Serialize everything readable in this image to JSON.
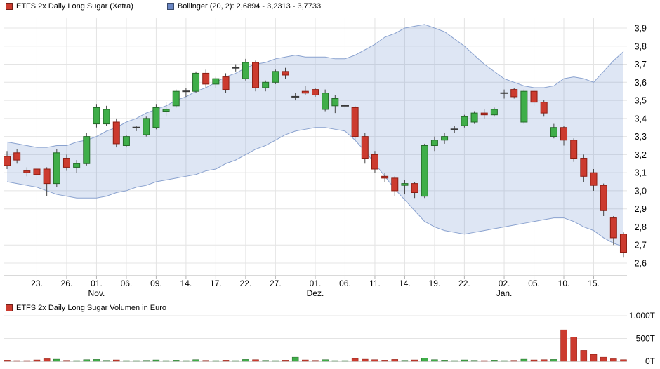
{
  "legend": {
    "price_series": {
      "label": "ETFS 2x Daily Long Sugar (Xetra)",
      "swatch": "red-square"
    },
    "bollinger": {
      "label": "Bollinger (20, 2): 2,6894 - 3,2313 - 3,7733",
      "swatch": "blue-square"
    },
    "volume_series": {
      "label": "ETFS 2x Daily Long Sugar Volumen in Euro",
      "swatch": "red-square"
    }
  },
  "colors": {
    "up": "#3fae49",
    "up_border": "#246b28",
    "down": "#cc3b2f",
    "down_border": "#8e1d12",
    "wick": "#444444",
    "doji": "#3a3a3a",
    "grid": "#e4e4e4",
    "axis": "#b3b3b3",
    "band_fill": "rgba(90,130,200,0.20)",
    "band_line": "#8aa2cf",
    "band_swatch": "#6b87c4",
    "text": "#000000"
  },
  "chart_data": [
    {
      "type": "candlestick",
      "title": "ETFS 2x Daily Long Sugar (Xetra)",
      "legend_entries": [
        "ETFS 2x Daily Long Sugar (Xetra)",
        "Bollinger (20, 2): 2,6894 - 3,2313 - 3,7733"
      ],
      "ylim": [
        2.6,
        3.9
      ],
      "grid": true,
      "y_ticks": [
        [
          "3,9",
          3.9
        ],
        [
          "3,8",
          3.8
        ],
        [
          "3,7",
          3.7
        ],
        [
          "3,6",
          3.6
        ],
        [
          "3,5",
          3.5
        ],
        [
          "3,4",
          3.4
        ],
        [
          "3,3",
          3.3
        ],
        [
          "3,2",
          3.2
        ],
        [
          "3,1",
          3.1
        ],
        [
          "3,0",
          3.0
        ],
        [
          "2,9",
          2.9
        ],
        [
          "2,8",
          2.8
        ],
        [
          "2,7",
          2.7
        ],
        [
          "2,6",
          2.6
        ]
      ],
      "x_ticks": [
        [
          3,
          "23."
        ],
        [
          6,
          "26."
        ],
        [
          9,
          "01."
        ],
        [
          12,
          "06."
        ],
        [
          15,
          "09."
        ],
        [
          18,
          "14."
        ],
        [
          21,
          "17."
        ],
        [
          24,
          "22."
        ],
        [
          27,
          "27."
        ],
        [
          31,
          "01."
        ],
        [
          34,
          "06."
        ],
        [
          37,
          "11."
        ],
        [
          40,
          "14."
        ],
        [
          43,
          "19."
        ],
        [
          46,
          "22."
        ],
        [
          50,
          "02."
        ],
        [
          53,
          "05."
        ],
        [
          56,
          "10."
        ],
        [
          59,
          "15."
        ]
      ],
      "month_ticks": [
        [
          9,
          "Nov."
        ],
        [
          31,
          "Dez."
        ],
        [
          50,
          "Jan."
        ]
      ],
      "candles_format": [
        "open",
        "high",
        "low",
        "close"
      ],
      "candles": [
        [
          3.19,
          3.22,
          3.12,
          3.14
        ],
        [
          3.21,
          3.23,
          3.15,
          3.17
        ],
        [
          3.11,
          3.13,
          3.08,
          3.1
        ],
        [
          3.12,
          3.13,
          3.06,
          3.09
        ],
        [
          3.12,
          3.13,
          2.97,
          3.04
        ],
        [
          3.04,
          3.23,
          3.02,
          3.21
        ],
        [
          3.18,
          3.2,
          3.11,
          3.13
        ],
        [
          3.13,
          3.17,
          3.1,
          3.15
        ],
        [
          3.15,
          3.32,
          3.14,
          3.3
        ],
        [
          3.37,
          3.48,
          3.35,
          3.46
        ],
        [
          3.37,
          3.47,
          3.36,
          3.45
        ],
        [
          3.38,
          3.4,
          3.24,
          3.26
        ],
        [
          3.25,
          3.31,
          3.24,
          3.3
        ],
        [
          3.35,
          3.36,
          3.33,
          3.35
        ],
        [
          3.31,
          3.41,
          3.3,
          3.4
        ],
        [
          3.35,
          3.48,
          3.34,
          3.46
        ],
        [
          3.44,
          3.49,
          3.41,
          3.45
        ],
        [
          3.47,
          3.56,
          3.46,
          3.55
        ],
        [
          3.55,
          3.57,
          3.52,
          3.55
        ],
        [
          3.55,
          3.66,
          3.54,
          3.65
        ],
        [
          3.65,
          3.67,
          3.57,
          3.59
        ],
        [
          3.59,
          3.63,
          3.57,
          3.62
        ],
        [
          3.63,
          3.65,
          3.54,
          3.56
        ],
        [
          3.68,
          3.7,
          3.66,
          3.68
        ],
        [
          3.62,
          3.73,
          3.61,
          3.71
        ],
        [
          3.71,
          3.72,
          3.55,
          3.57
        ],
        [
          3.57,
          3.61,
          3.55,
          3.6
        ],
        [
          3.6,
          3.67,
          3.59,
          3.66
        ],
        [
          3.66,
          3.68,
          3.62,
          3.64
        ],
        [
          3.52,
          3.54,
          3.5,
          3.52
        ],
        [
          3.55,
          3.58,
          3.53,
          3.54
        ],
        [
          3.56,
          3.57,
          3.52,
          3.53
        ],
        [
          3.45,
          3.56,
          3.44,
          3.54
        ],
        [
          3.47,
          3.53,
          3.43,
          3.51
        ],
        [
          3.47,
          3.48,
          3.45,
          3.47
        ],
        [
          3.46,
          3.47,
          3.28,
          3.3
        ],
        [
          3.3,
          3.32,
          3.15,
          3.18
        ],
        [
          3.2,
          3.22,
          3.1,
          3.12
        ],
        [
          3.08,
          3.1,
          3.05,
          3.07
        ],
        [
          3.07,
          3.08,
          2.97,
          3.0
        ],
        [
          3.03,
          3.06,
          2.98,
          3.04
        ],
        [
          3.04,
          3.05,
          2.96,
          2.99
        ],
        [
          2.97,
          3.26,
          2.96,
          3.25
        ],
        [
          3.25,
          3.3,
          3.22,
          3.28
        ],
        [
          3.28,
          3.32,
          3.26,
          3.3
        ],
        [
          3.34,
          3.36,
          3.32,
          3.34
        ],
        [
          3.36,
          3.42,
          3.35,
          3.41
        ],
        [
          3.38,
          3.44,
          3.37,
          3.43
        ],
        [
          3.43,
          3.45,
          3.4,
          3.42
        ],
        [
          3.42,
          3.46,
          3.41,
          3.45
        ],
        [
          3.54,
          3.56,
          3.51,
          3.54
        ],
        [
          3.56,
          3.57,
          3.51,
          3.52
        ],
        [
          3.38,
          3.56,
          3.37,
          3.55
        ],
        [
          3.55,
          3.56,
          3.47,
          3.49
        ],
        [
          3.49,
          3.5,
          3.41,
          3.43
        ],
        [
          3.3,
          3.37,
          3.29,
          3.35
        ],
        [
          3.35,
          3.36,
          3.25,
          3.28
        ],
        [
          3.28,
          3.29,
          3.16,
          3.18
        ],
        [
          3.18,
          3.2,
          3.05,
          3.08
        ],
        [
          3.1,
          3.12,
          3.0,
          3.03
        ],
        [
          3.03,
          3.04,
          2.86,
          2.89
        ],
        [
          2.85,
          2.86,
          2.7,
          2.74
        ],
        [
          2.76,
          2.77,
          2.63,
          2.66
        ]
      ],
      "bollinger": {
        "period": 20,
        "stddev": 2,
        "current_values": {
          "lower": "2,6894",
          "middle": "3,2313",
          "upper": "3,7733"
        },
        "upper": [
          3.27,
          3.26,
          3.25,
          3.24,
          3.24,
          3.25,
          3.25,
          3.27,
          3.28,
          3.3,
          3.33,
          3.35,
          3.38,
          3.4,
          3.43,
          3.45,
          3.47,
          3.5,
          3.52,
          3.55,
          3.57,
          3.6,
          3.63,
          3.65,
          3.68,
          3.7,
          3.71,
          3.73,
          3.74,
          3.75,
          3.74,
          3.74,
          3.74,
          3.73,
          3.73,
          3.75,
          3.78,
          3.81,
          3.85,
          3.87,
          3.9,
          3.91,
          3.92,
          3.9,
          3.88,
          3.84,
          3.8,
          3.75,
          3.7,
          3.66,
          3.62,
          3.6,
          3.58,
          3.57,
          3.57,
          3.58,
          3.62,
          3.63,
          3.62,
          3.6,
          3.66,
          3.72,
          3.77
        ],
        "middle": [
          3.16,
          3.15,
          3.14,
          3.13,
          3.12,
          3.12,
          3.11,
          3.12,
          3.12,
          3.13,
          3.15,
          3.17,
          3.19,
          3.21,
          3.23,
          3.25,
          3.27,
          3.29,
          3.3,
          3.32,
          3.34,
          3.36,
          3.39,
          3.41,
          3.44,
          3.47,
          3.48,
          3.5,
          3.53,
          3.54,
          3.54,
          3.55,
          3.55,
          3.54,
          3.53,
          3.52,
          3.5,
          3.48,
          3.46,
          3.44,
          3.42,
          3.4,
          3.38,
          3.35,
          3.33,
          3.31,
          3.28,
          3.26,
          3.24,
          3.23,
          3.21,
          3.21,
          3.2,
          3.2,
          3.21,
          3.22,
          3.23,
          3.23,
          3.23,
          3.23,
          3.23,
          3.23,
          3.23
        ],
        "lower": [
          3.05,
          3.04,
          3.03,
          3.02,
          3.0,
          2.98,
          2.97,
          2.96,
          2.96,
          2.96,
          2.97,
          2.99,
          3.0,
          3.02,
          3.03,
          3.05,
          3.06,
          3.07,
          3.08,
          3.09,
          3.11,
          3.12,
          3.15,
          3.17,
          3.2,
          3.23,
          3.25,
          3.28,
          3.31,
          3.33,
          3.34,
          3.35,
          3.35,
          3.34,
          3.33,
          3.28,
          3.22,
          3.15,
          3.08,
          3.01,
          2.95,
          2.89,
          2.83,
          2.8,
          2.78,
          2.77,
          2.76,
          2.77,
          2.78,
          2.79,
          2.8,
          2.81,
          2.82,
          2.83,
          2.84,
          2.85,
          2.85,
          2.83,
          2.8,
          2.78,
          2.74,
          2.71,
          2.69
        ]
      }
    },
    {
      "type": "bar",
      "title": "ETFS 2x Daily Long Sugar Volumen in Euro",
      "unit": "T (Tausend Euro)",
      "ylim": [
        0,
        1000
      ],
      "y_ticks": [
        [
          "1.000T",
          1000
        ],
        [
          "500T",
          500
        ],
        [
          "0T",
          0
        ]
      ],
      "values_T": [
        25,
        15,
        10,
        30,
        55,
        45,
        20,
        15,
        35,
        40,
        20,
        30,
        15,
        8,
        20,
        30,
        15,
        25,
        10,
        35,
        20,
        15,
        25,
        10,
        40,
        35,
        20,
        15,
        25,
        90,
        30,
        20,
        35,
        15,
        10,
        60,
        45,
        35,
        25,
        40,
        20,
        30,
        70,
        35,
        25,
        10,
        30,
        20,
        15,
        25,
        12,
        20,
        45,
        30,
        35,
        40,
        690,
        530,
        240,
        150,
        90,
        55,
        35
      ]
    }
  ]
}
